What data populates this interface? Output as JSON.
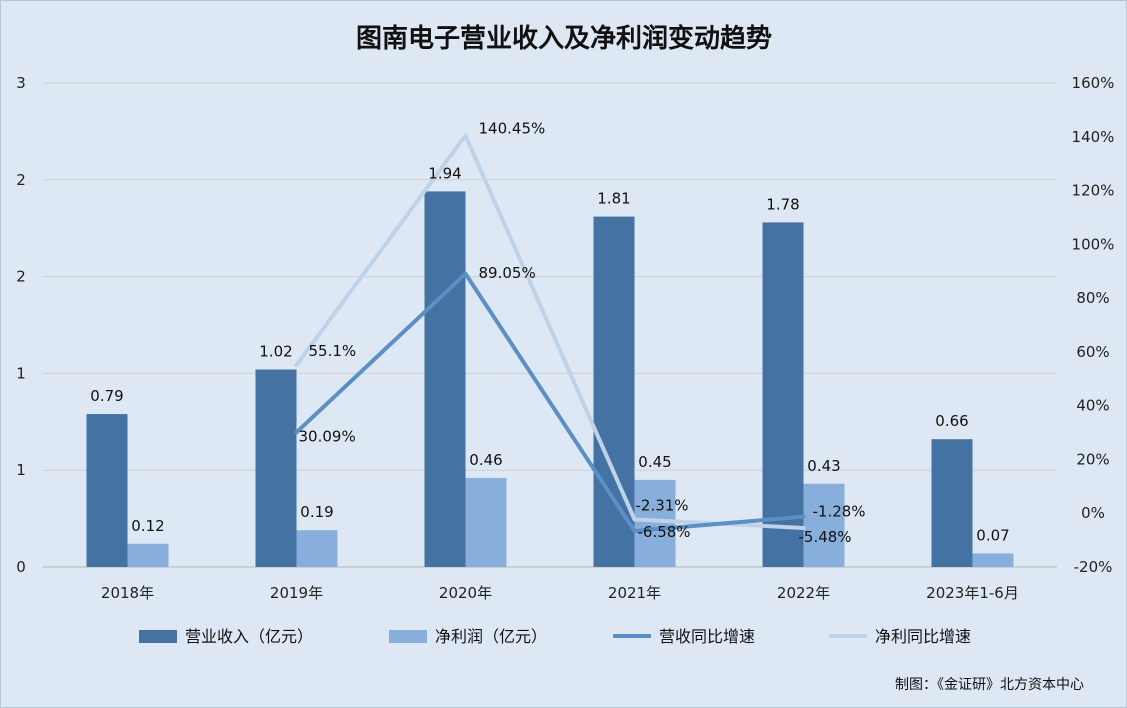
{
  "chart_data": {
    "type": "bar",
    "title": "图南电子营业收入及净利润变动趋势",
    "categories": [
      "2018年",
      "2019年",
      "2020年",
      "2021年",
      "2022年",
      "2023年1-6月"
    ],
    "series": [
      {
        "name": "营业收入（亿元）",
        "kind": "bar",
        "axis": "left",
        "color": "#4472a2",
        "values": [
          0.79,
          1.02,
          1.94,
          1.81,
          1.78,
          0.66
        ],
        "labels": [
          "0.79",
          "1.02",
          "1.94",
          "1.81",
          "1.78",
          "0.66"
        ]
      },
      {
        "name": "净利润（亿元）",
        "kind": "bar",
        "axis": "left",
        "color": "#88afdc",
        "values": [
          0.12,
          0.19,
          0.46,
          0.45,
          0.43,
          0.07
        ],
        "labels": [
          "0.12",
          "0.19",
          "0.46",
          "0.45",
          "0.43",
          "0.07"
        ]
      },
      {
        "name": "营收同比增速",
        "kind": "line",
        "axis": "right",
        "color": "#5b8fc6",
        "values": [
          null,
          30.09,
          89.05,
          -6.58,
          -1.28,
          null
        ],
        "labels": [
          "",
          "30.09%",
          "89.05%",
          "-6.58%",
          "-1.28%",
          ""
        ]
      },
      {
        "name": "净利同比增速",
        "kind": "line",
        "axis": "right",
        "color": "#bed2ea",
        "values": [
          null,
          55.1,
          140.45,
          -2.31,
          -5.48,
          null
        ],
        "labels": [
          "",
          "55.1%",
          "140.45%",
          "-2.31%",
          "-5.48%",
          ""
        ]
      }
    ],
    "y_left": {
      "ylim": [
        0,
        2.5
      ],
      "ticks": [
        0,
        0.5,
        1,
        1.5,
        2,
        2.5
      ],
      "tick_labels": [
        "0",
        "1",
        "1",
        "2",
        "2",
        "3"
      ]
    },
    "y_right": {
      "ylim": [
        -20,
        160
      ],
      "ticks": [
        -20,
        0,
        20,
        40,
        60,
        80,
        100,
        120,
        140,
        160
      ],
      "tick_labels": [
        "-20%",
        "0%",
        "20%",
        "40%",
        "60%",
        "80%",
        "100%",
        "120%",
        "140%",
        "160%"
      ]
    },
    "grid": true,
    "legend_position": "bottom"
  },
  "credit": "制图：《金证研》北方资本中心"
}
